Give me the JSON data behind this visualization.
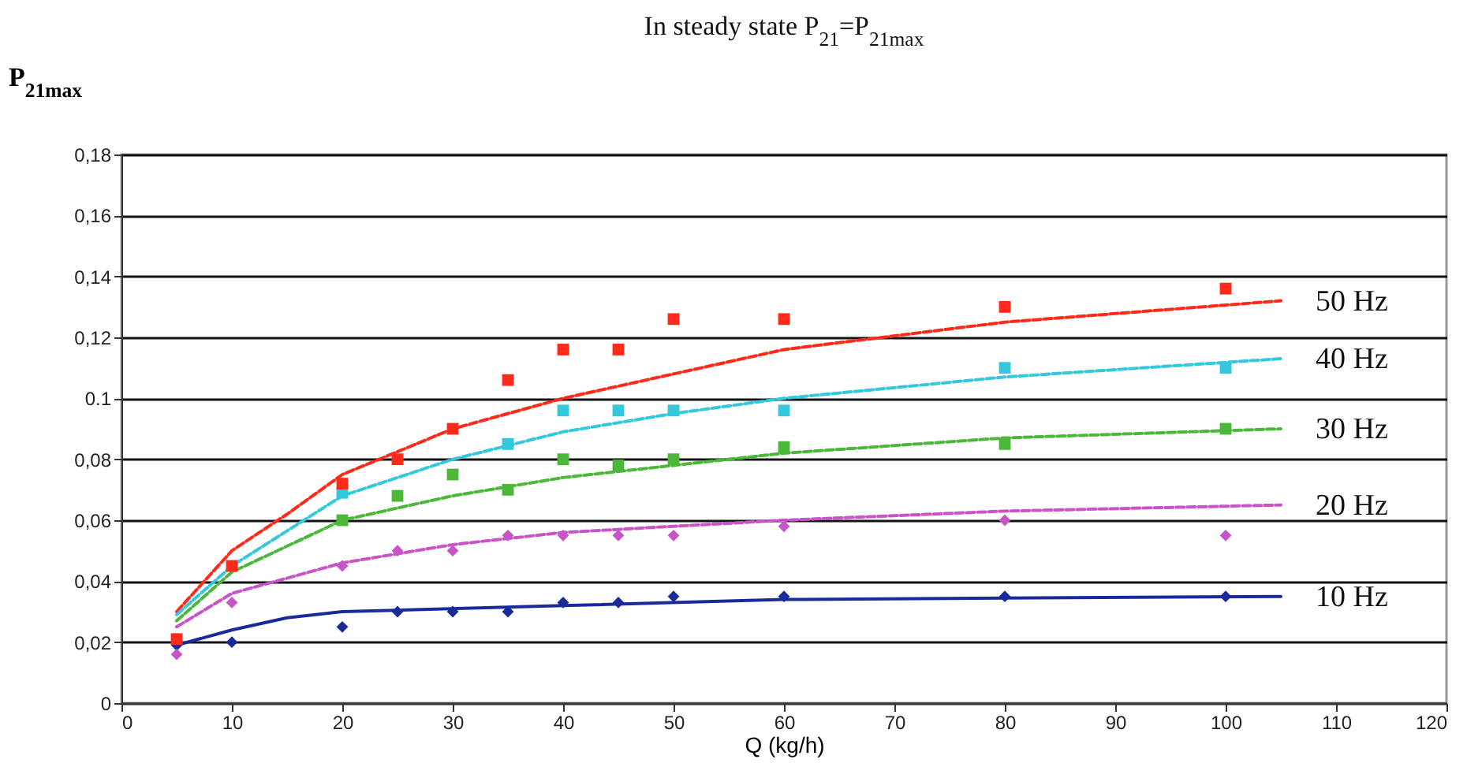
{
  "chart_data": {
    "type": "scatter",
    "title": "In steady state P$_{21}$=P$_{21max}$",
    "ylabel": "P$_{21max}$",
    "xlabel": "Q (kg/h)",
    "xlim": [
      0,
      120
    ],
    "xticks": [
      0,
      10,
      20,
      30,
      40,
      50,
      60,
      70,
      80,
      90,
      100,
      110,
      120
    ],
    "ylim": [
      0,
      0.18
    ],
    "yticks": [
      {
        "value": 0,
        "label": "0"
      },
      {
        "value": 0.02,
        "label": "0,02"
      },
      {
        "value": 0.04,
        "label": "0,04"
      },
      {
        "value": 0.06,
        "label": "0,06"
      },
      {
        "value": 0.08,
        "label": "0,08"
      },
      {
        "value": 0.1,
        "label": "0.1"
      },
      {
        "value": 0.12,
        "label": "0,12"
      },
      {
        "value": 0.14,
        "label": "0,14"
      },
      {
        "value": 0.16,
        "label": "0,16"
      },
      {
        "value": 0.18,
        "label": "0,18"
      }
    ],
    "grid": "y",
    "series": [
      {
        "marker": "square",
        "color": "#ff2a1a",
        "x": [
          5,
          10,
          20,
          25,
          30,
          35,
          40,
          45,
          50,
          60,
          80,
          100
        ],
        "values": [
          0.021,
          0.045,
          0.072,
          0.08,
          0.09,
          0.106,
          0.116,
          0.116,
          0.126,
          0.126,
          0.13,
          0.136
        ]
      },
      {
        "marker": "square",
        "color": "#33c8dc",
        "x": [
          20,
          35,
          40,
          45,
          50,
          60,
          80,
          100
        ],
        "values": [
          0.069,
          0.085,
          0.096,
          0.096,
          0.096,
          0.096,
          0.11,
          0.11
        ]
      },
      {
        "marker": "square",
        "color": "#4cb83a",
        "x": [
          20,
          25,
          30,
          35,
          40,
          45,
          50,
          60,
          80,
          100
        ],
        "values": [
          0.06,
          0.068,
          0.075,
          0.07,
          0.08,
          0.078,
          0.08,
          0.084,
          0.085,
          0.09
        ]
      },
      {
        "marker": "diamond",
        "color": "#c855c8",
        "x": [
          5,
          10,
          20,
          25,
          30,
          35,
          40,
          45,
          50,
          60,
          80,
          100
        ],
        "values": [
          0.016,
          0.033,
          0.045,
          0.05,
          0.05,
          0.055,
          0.055,
          0.055,
          0.055,
          0.058,
          0.06,
          0.055
        ]
      },
      {
        "marker": "diamond",
        "color": "#1a2a99",
        "x": [
          5,
          10,
          20,
          25,
          30,
          35,
          40,
          45,
          50,
          60,
          80,
          100
        ],
        "values": [
          0.019,
          0.02,
          0.025,
          0.03,
          0.03,
          0.03,
          0.033,
          0.033,
          0.035,
          0.035,
          0.035,
          0.035
        ]
      },
      {
        "type": "line",
        "name": "50 Hz",
        "line_style": "dashed",
        "color": "#ff2a1a",
        "x": [
          5,
          10,
          15,
          20,
          30,
          40,
          50,
          60,
          80,
          105
        ],
        "values": [
          0.03,
          0.05,
          0.062,
          0.075,
          0.09,
          0.1,
          0.108,
          0.116,
          0.125,
          0.132
        ]
      },
      {
        "type": "line",
        "name": "40 Hz",
        "line_style": "dashed",
        "color": "#33c8dc",
        "x": [
          5,
          10,
          20,
          30,
          40,
          50,
          60,
          80,
          105
        ],
        "values": [
          0.029,
          0.045,
          0.068,
          0.08,
          0.089,
          0.095,
          0.1,
          0.107,
          0.113
        ]
      },
      {
        "type": "line",
        "name": "30 Hz",
        "line_style": "dashed",
        "color": "#4cb83a",
        "x": [
          5,
          10,
          20,
          30,
          40,
          50,
          60,
          80,
          105
        ],
        "values": [
          0.027,
          0.043,
          0.06,
          0.068,
          0.074,
          0.078,
          0.082,
          0.087,
          0.09
        ]
      },
      {
        "type": "line",
        "name": "20 Hz",
        "line_style": "dashed",
        "color": "#c855c8",
        "x": [
          5,
          10,
          20,
          30,
          40,
          50,
          60,
          80,
          105
        ],
        "values": [
          0.025,
          0.036,
          0.046,
          0.052,
          0.056,
          0.058,
          0.06,
          0.063,
          0.065
        ]
      },
      {
        "type": "line",
        "name": "10 Hz",
        "line_style": "solid",
        "color": "#1a2a99",
        "x": [
          5,
          10,
          15,
          20,
          40,
          60,
          105
        ],
        "values": [
          0.019,
          0.024,
          0.028,
          0.03,
          0.032,
          0.034,
          0.035
        ]
      }
    ]
  }
}
